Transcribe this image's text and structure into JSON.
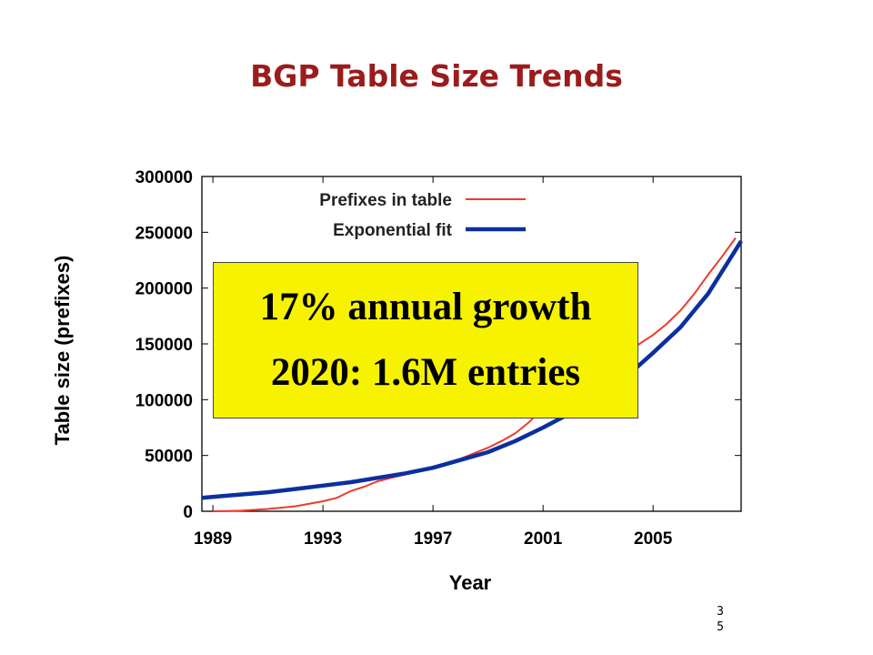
{
  "slide": {
    "title": "BGP Table Size Trends",
    "page_number": "35"
  },
  "callout": {
    "line1": "17% annual growth",
    "line2": "2020:  1.6M entries",
    "background": "#f7f300"
  },
  "colors": {
    "title": "#9b1c1c",
    "series_prefixes": "#f03a2a",
    "series_fit": "#0b2f9e"
  },
  "chart_data": {
    "type": "line",
    "xlabel": "Year",
    "ylabel": "Table size (prefixes)",
    "xlim": [
      1988.6,
      2008.2
    ],
    "ylim": [
      0,
      300000
    ],
    "xticks": [
      1989,
      1993,
      1997,
      2001,
      2005
    ],
    "yticks": [
      0,
      50000,
      100000,
      150000,
      200000,
      250000,
      300000
    ],
    "grid": false,
    "legend_position": "top-right",
    "series": [
      {
        "name": "Prefixes in table",
        "x": [
          1989,
          1990,
          1991,
          1992,
          1993,
          1993.5,
          1994,
          1994.5,
          1995,
          1995.5,
          1996,
          1996.5,
          1997,
          1997.5,
          1998,
          1998.5,
          1999,
          1999.5,
          2000,
          2000.5,
          2001,
          2001.5,
          2002,
          2002.5,
          2003,
          2003.5,
          2004,
          2004.5,
          2005,
          2005.5,
          2006,
          2006.5,
          2007,
          2007.5,
          2008
        ],
        "y": [
          0,
          500,
          2000,
          4500,
          9000,
          12000,
          18000,
          22000,
          27000,
          30000,
          33000,
          36000,
          40000,
          43000,
          47000,
          52000,
          57000,
          63000,
          70000,
          80000,
          93000,
          104000,
          108000,
          110000,
          115000,
          125000,
          140000,
          150000,
          158000,
          168000,
          180000,
          195000,
          212000,
          228000,
          245000
        ]
      },
      {
        "name": "Exponential fit",
        "x": [
          1988.6,
          1990,
          1991,
          1992,
          1993,
          1994,
          1995,
          1996,
          1997,
          1998,
          1999,
          2000,
          2001,
          2002,
          2003,
          2004,
          2005,
          2006,
          2007,
          2008.2
        ],
        "y": [
          12000,
          15000,
          17000,
          20000,
          23000,
          26000,
          30000,
          34000,
          39000,
          46000,
          53000,
          63000,
          75000,
          88000,
          103000,
          120000,
          142000,
          165000,
          195000,
          242000
        ]
      }
    ]
  }
}
